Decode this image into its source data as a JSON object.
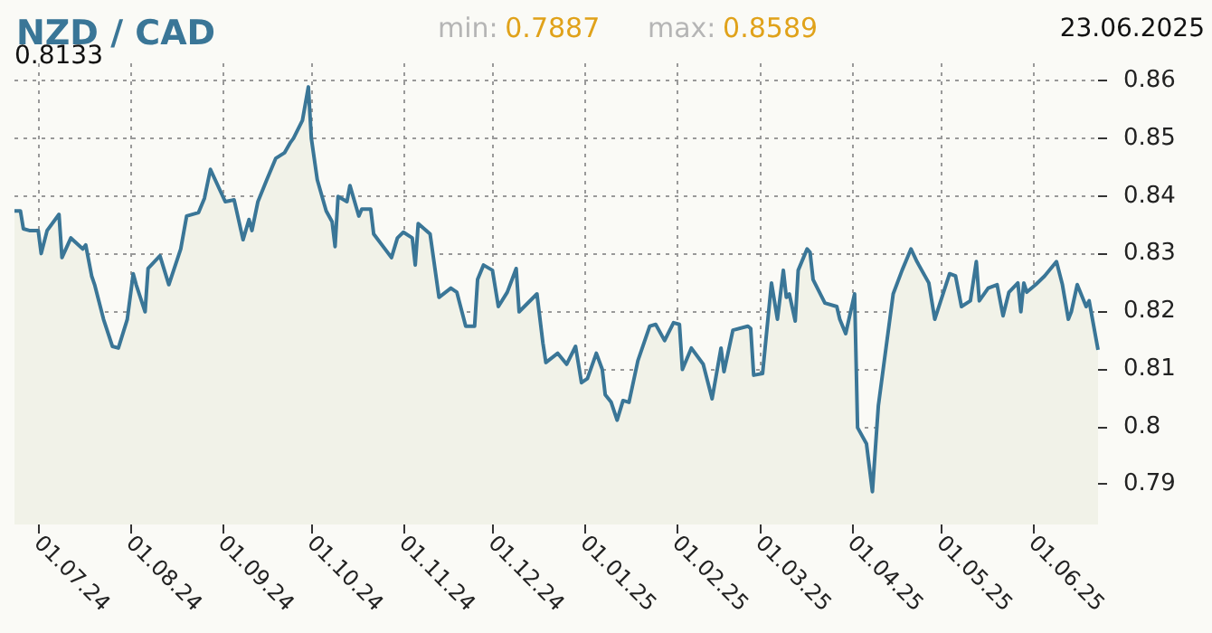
{
  "chart_data": {
    "type": "area",
    "title": "NZD / CAD",
    "annotations": [
      "min: 0.7887",
      "max: 0.8589",
      "23.06.2025",
      "0.8133"
    ],
    "xlim": [
      "2024-06-23",
      "2025-06-23"
    ],
    "xticks": [
      {
        "value": "2024-07-01",
        "label": "01.07.24"
      },
      {
        "value": "2024-08-01",
        "label": "01.08.24"
      },
      {
        "value": "2024-09-01",
        "label": "01.09.24"
      },
      {
        "value": "2024-10-01",
        "label": "01.10.24"
      },
      {
        "value": "2024-11-01",
        "label": "01.11.24"
      },
      {
        "value": "2024-12-01",
        "label": "01.12.24"
      },
      {
        "value": "2025-01-01",
        "label": "01.01.25"
      },
      {
        "value": "2025-02-01",
        "label": "01.02.25"
      },
      {
        "value": "2025-03-01",
        "label": "01.03.25"
      },
      {
        "value": "2025-04-01",
        "label": "01.04.25"
      },
      {
        "value": "2025-05-01",
        "label": "01.05.25"
      },
      {
        "value": "2025-06-01",
        "label": "01.06.25"
      }
    ],
    "ylim": [
      0.783,
      0.863
    ],
    "yticks": [
      0.79,
      0.8,
      0.81,
      0.82,
      0.83,
      0.84,
      0.85,
      0.86
    ],
    "grid": true,
    "x": [
      "2024-06-23",
      "2024-06-25",
      "2024-06-26",
      "2024-06-28",
      "2024-07-01",
      "2024-07-02",
      "2024-07-04",
      "2024-07-08",
      "2024-07-09",
      "2024-07-12",
      "2024-07-16",
      "2024-07-17",
      "2024-07-19",
      "2024-07-20",
      "2024-07-23",
      "2024-07-26",
      "2024-07-28",
      "2024-07-31",
      "2024-08-02",
      "2024-08-03",
      "2024-08-06",
      "2024-08-07",
      "2024-08-11",
      "2024-08-14",
      "2024-08-18",
      "2024-08-20",
      "2024-08-24",
      "2024-08-26",
      "2024-08-28",
      "2024-09-02",
      "2024-09-05",
      "2024-09-08",
      "2024-09-10",
      "2024-09-11",
      "2024-09-13",
      "2024-09-16",
      "2024-09-19",
      "2024-09-22",
      "2024-09-24",
      "2024-09-25",
      "2024-09-28",
      "2024-09-30",
      "2024-10-01",
      "2024-10-03",
      "2024-10-06",
      "2024-10-08",
      "2024-10-09",
      "2024-10-10",
      "2024-10-13",
      "2024-10-14",
      "2024-10-17",
      "2024-10-18",
      "2024-10-21",
      "2024-10-22",
      "2024-10-28",
      "2024-10-30",
      "2024-11-01",
      "2024-11-04",
      "2024-11-05",
      "2024-11-06",
      "2024-11-10",
      "2024-11-13",
      "2024-11-17",
      "2024-11-19",
      "2024-11-22",
      "2024-11-25",
      "2024-11-26",
      "2024-11-28",
      "2024-12-01",
      "2024-12-03",
      "2024-12-06",
      "2024-12-09",
      "2024-12-10",
      "2024-12-16",
      "2024-12-18",
      "2024-12-19",
      "2024-12-23",
      "2024-12-26",
      "2024-12-29",
      "2024-12-31",
      "2025-01-02",
      "2025-01-05",
      "2025-01-07",
      "2025-01-08",
      "2025-01-10",
      "2025-01-12",
      "2025-01-14",
      "2025-01-16",
      "2025-01-19",
      "2025-01-23",
      "2025-01-25",
      "2025-01-28",
      "2025-01-31",
      "2025-02-02",
      "2025-02-03",
      "2025-02-06",
      "2025-02-10",
      "2025-02-13",
      "2025-02-16",
      "2025-02-17",
      "2025-02-20",
      "2025-02-25",
      "2025-02-26",
      "2025-02-27",
      "2025-03-02",
      "2025-03-05",
      "2025-03-07",
      "2025-03-09",
      "2025-03-10",
      "2025-03-11",
      "2025-03-13",
      "2025-03-14",
      "2025-03-17",
      "2025-03-18",
      "2025-03-19",
      "2025-03-23",
      "2025-03-27",
      "2025-03-28",
      "2025-03-30",
      "2025-04-02",
      "2025-04-03",
      "2025-04-06",
      "2025-04-08",
      "2025-04-10",
      "2025-04-12",
      "2025-04-15",
      "2025-04-18",
      "2025-04-21",
      "2025-04-23",
      "2025-04-27",
      "2025-04-29",
      "2025-05-04",
      "2025-05-06",
      "2025-05-08",
      "2025-05-11",
      "2025-05-13",
      "2025-05-14",
      "2025-05-17",
      "2025-05-20",
      "2025-05-22",
      "2025-05-24",
      "2025-05-27",
      "2025-05-28",
      "2025-05-29",
      "2025-05-30",
      "2025-06-02",
      "2025-06-05",
      "2025-06-09",
      "2025-06-11",
      "2025-06-13",
      "2025-06-14",
      "2025-06-16",
      "2025-06-19",
      "2025-06-20",
      "2025-06-23"
    ],
    "series": [
      {
        "color": "#3a7697",
        "values": [
          0.8374,
          0.8374,
          0.8343,
          0.834,
          0.834,
          0.83,
          0.834,
          0.8368,
          0.8293,
          0.8327,
          0.8308,
          0.8315,
          0.8261,
          0.8246,
          0.8186,
          0.8139,
          0.8136,
          0.8186,
          0.8265,
          0.8246,
          0.8199,
          0.8274,
          0.8296,
          0.8246,
          0.8308,
          0.8365,
          0.8371,
          0.8396,
          0.8446,
          0.839,
          0.8393,
          0.8324,
          0.8359,
          0.834,
          0.839,
          0.8428,
          0.8465,
          0.8475,
          0.8493,
          0.85,
          0.8531,
          0.8589,
          0.85,
          0.8428,
          0.8374,
          0.8355,
          0.8312,
          0.8399,
          0.839,
          0.8418,
          0.8365,
          0.8377,
          0.8377,
          0.8334,
          0.8293,
          0.8327,
          0.8337,
          0.8327,
          0.828,
          0.8352,
          0.8334,
          0.8224,
          0.824,
          0.8233,
          0.8174,
          0.8174,
          0.8255,
          0.828,
          0.8271,
          0.8208,
          0.8233,
          0.8274,
          0.8199,
          0.823,
          0.8145,
          0.8111,
          0.8127,
          0.8108,
          0.8139,
          0.8076,
          0.8083,
          0.8127,
          0.8099,
          0.8055,
          0.8042,
          0.8011,
          0.8045,
          0.8042,
          0.8114,
          0.8174,
          0.8177,
          0.8149,
          0.818,
          0.8177,
          0.8099,
          0.8136,
          0.8108,
          0.8048,
          0.8136,
          0.8095,
          0.8167,
          0.8174,
          0.817,
          0.8089,
          0.8092,
          0.8249,
          0.8186,
          0.8271,
          0.8224,
          0.823,
          0.8183,
          0.8271,
          0.8308,
          0.8302,
          0.8255,
          0.8214,
          0.8208,
          0.8186,
          0.8161,
          0.823,
          0.7998,
          0.797,
          0.7887,
          0.8036,
          0.8114,
          0.823,
          0.8271,
          0.8308,
          0.8286,
          0.8249,
          0.8186,
          0.8265,
          0.8261,
          0.8208,
          0.8218,
          0.8286,
          0.8218,
          0.824,
          0.8246,
          0.8192,
          0.8233,
          0.8249,
          0.8199,
          0.8249,
          0.8233,
          0.8246,
          0.8261,
          0.8286,
          0.8246,
          0.8186,
          0.8199,
          0.8246,
          0.8208,
          0.8218,
          0.8133
        ]
      }
    ]
  }
}
